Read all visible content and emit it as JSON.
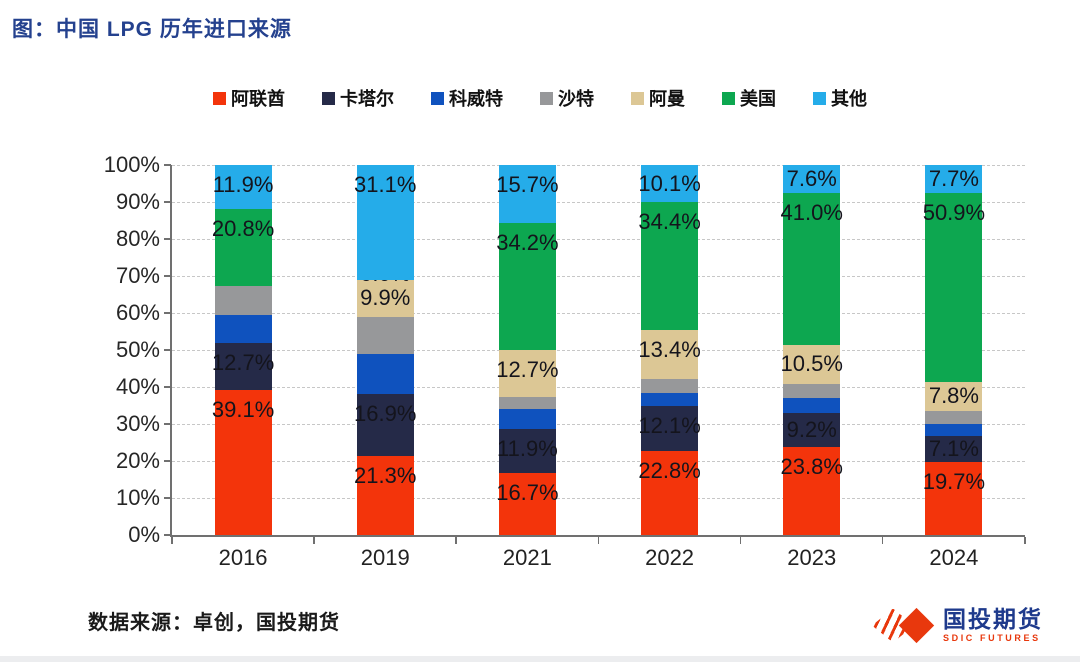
{
  "title": "图：中国 LPG 历年进口来源",
  "source_note": "数据来源：卓创，国投期货",
  "logo": {
    "name": "国投期货",
    "subtitle": "SDIC FUTURES"
  },
  "colors": {
    "title_blue": "#24418E",
    "axis": "#707070",
    "gridline": "#c7c7c7",
    "data_label": "#14141c",
    "logo_red": "#E8380D",
    "logo_blue": "#1E3A8C"
  },
  "chart_data": {
    "type": "bar",
    "stacked": true,
    "grid": "horizontal dashed",
    "legend_position": "top center",
    "categories": [
      "2016",
      "2019",
      "2021",
      "2022",
      "2023",
      "2024"
    ],
    "ylim": [
      0,
      100
    ],
    "y_ticks": [
      {
        "value": 0,
        "label": "0%"
      },
      {
        "value": 10,
        "label": "10%"
      },
      {
        "value": 20,
        "label": "20%"
      },
      {
        "value": 30,
        "label": "30%"
      },
      {
        "value": 40,
        "label": "40%"
      },
      {
        "value": 50,
        "label": "50%"
      },
      {
        "value": 60,
        "label": "60%"
      },
      {
        "value": 70,
        "label": "70%"
      },
      {
        "value": 80,
        "label": "80%"
      },
      {
        "value": 90,
        "label": "90%"
      },
      {
        "value": 100,
        "label": "100%"
      }
    ],
    "series": [
      {
        "name": "阿联酋",
        "color": "#F3340B",
        "values": [
          39.1,
          21.3,
          16.7,
          22.8,
          23.8,
          19.7
        ],
        "labels": [
          "39.1%",
          "21.3%",
          "16.7%",
          "22.8%",
          "23.8%",
          "19.7%"
        ]
      },
      {
        "name": "卡塔尔",
        "color": "#252A48",
        "values": [
          12.7,
          16.9,
          11.9,
          12.1,
          9.2,
          7.1
        ],
        "labels": [
          "12.7%",
          "16.9%",
          "11.9%",
          "12.1%",
          "9.2%",
          "7.1%"
        ]
      },
      {
        "name": "科威特",
        "color": "#0F52BE",
        "values": [
          7.6,
          10.8,
          5.5,
          3.5,
          4.0,
          3.2
        ],
        "labels": [
          null,
          null,
          null,
          null,
          null,
          null
        ]
      },
      {
        "name": "沙特",
        "color": "#97989A",
        "values": [
          7.9,
          10.0,
          3.3,
          3.7,
          3.9,
          3.6
        ],
        "labels": [
          null,
          null,
          null,
          null,
          null,
          null
        ]
      },
      {
        "name": "阿曼",
        "color": "#DCC795",
        "values": [
          0.0,
          9.9,
          12.7,
          13.4,
          10.5,
          7.8
        ],
        "labels": [
          null,
          "9.9%",
          "12.7%",
          "13.4%",
          "10.5%",
          "7.8%"
        ]
      },
      {
        "name": "美国",
        "color": "#0DA750",
        "values": [
          20.8,
          0.0,
          34.2,
          34.4,
          41.0,
          50.9
        ],
        "labels": [
          "20.8%",
          "0.0%",
          "34.2%",
          "34.4%",
          "41.0%",
          "50.9%"
        ]
      },
      {
        "name": "其他",
        "color": "#25ACE9",
        "values": [
          11.9,
          31.1,
          15.7,
          10.1,
          7.6,
          7.7
        ],
        "labels": [
          "11.9%",
          "31.1%",
          "15.7%",
          "10.1%",
          "7.6%",
          "7.7%"
        ]
      }
    ]
  }
}
